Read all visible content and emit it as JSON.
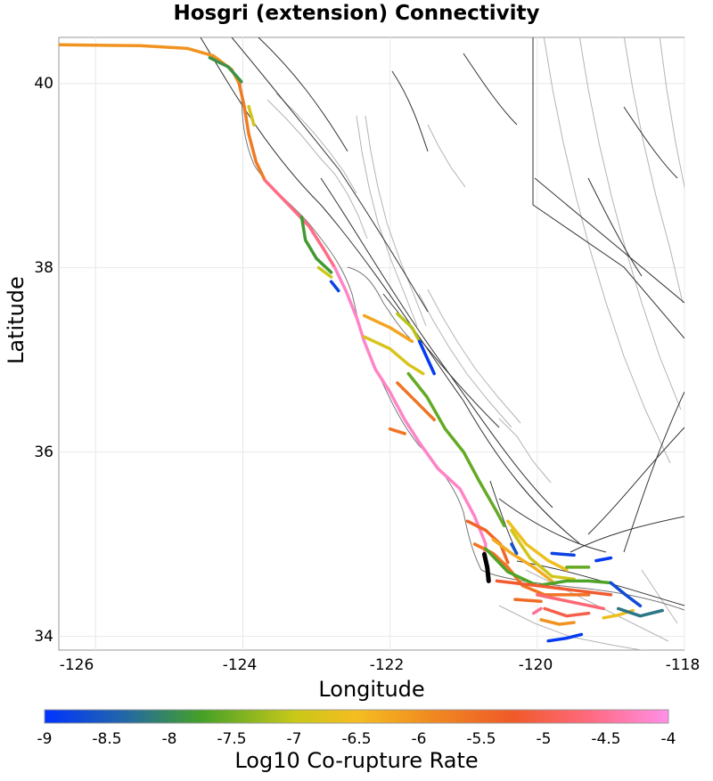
{
  "title": "Hosgri (extension) Connectivity",
  "axes": {
    "xlabel": "Longitude",
    "ylabel": "Latitude",
    "x_ticks": [
      "-126",
      "-124",
      "-122",
      "-120",
      "-118"
    ],
    "y_ticks": [
      "40",
      "38",
      "36",
      "34"
    ],
    "xlim": [
      -126.5,
      -118
    ],
    "ylim": [
      33.85,
      40.5
    ],
    "grid": true
  },
  "colorbar": {
    "title": "Log10 Co-rupture Rate",
    "ticks": [
      "-9",
      "-8.5",
      "-8",
      "-7.5",
      "-7",
      "-6.5",
      "-6",
      "-5.5",
      "-5",
      "-4.5",
      "-4"
    ],
    "range": [
      -9,
      -4
    ],
    "colors": [
      "#0033ff",
      "#2266aa",
      "#44a028",
      "#c8c818",
      "#f5bd20",
      "#f08820",
      "#f05a28",
      "#ff6a80",
      "#ff90e8"
    ]
  },
  "colors": {
    "fault_outline": "#333333",
    "fault_polygon": "#b4b4b4",
    "coast": "#777777",
    "source_fault": "#000000"
  },
  "map_data": {
    "source_fault": {
      "value": null,
      "lonlat": [
        [
          -120.72,
          34.89
        ],
        [
          -120.68,
          34.75
        ],
        [
          -120.66,
          34.6
        ]
      ]
    },
    "ruptures": [
      {
        "value": -6.0,
        "lonlat": [
          [
            -126.5,
            40.42
          ],
          [
            -125.4,
            40.41
          ],
          [
            -124.75,
            40.38
          ],
          [
            -124.4,
            40.3
          ],
          [
            -124.15,
            40.15
          ],
          [
            -124.05,
            40.0
          ]
        ]
      },
      {
        "value": -7.9,
        "lonlat": [
          [
            -124.45,
            40.28
          ],
          [
            -124.2,
            40.18
          ],
          [
            -124.02,
            40.02
          ]
        ]
      },
      {
        "value": -5.7,
        "lonlat": [
          [
            -124.05,
            40.0
          ],
          [
            -123.98,
            39.75
          ],
          [
            -123.92,
            39.45
          ],
          [
            -123.82,
            39.15
          ],
          [
            -123.7,
            38.95
          ]
        ]
      },
      {
        "value": -7.0,
        "lonlat": [
          [
            -123.92,
            39.75
          ],
          [
            -123.85,
            39.55
          ]
        ]
      },
      {
        "value": -4.6,
        "lonlat": [
          [
            -123.7,
            38.95
          ],
          [
            -123.4,
            38.7
          ],
          [
            -123.1,
            38.45
          ],
          [
            -122.9,
            38.2
          ],
          [
            -122.75,
            38.0
          ]
        ]
      },
      {
        "value": -4.2,
        "lonlat": [
          [
            -122.75,
            38.0
          ],
          [
            -122.6,
            37.75
          ],
          [
            -122.45,
            37.45
          ],
          [
            -122.35,
            37.2
          ],
          [
            -122.2,
            36.9
          ],
          [
            -122.0,
            36.65
          ],
          [
            -121.8,
            36.35
          ],
          [
            -121.6,
            36.1
          ],
          [
            -121.35,
            35.82
          ],
          [
            -121.05,
            35.6
          ],
          [
            -120.85,
            35.3
          ],
          [
            -120.7,
            35.0
          ],
          [
            -120.72,
            34.89
          ]
        ]
      },
      {
        "value": -7.8,
        "lonlat": [
          [
            -123.2,
            38.55
          ],
          [
            -123.15,
            38.3
          ],
          [
            -123.0,
            38.1
          ],
          [
            -122.8,
            37.95
          ]
        ]
      },
      {
        "value": -8.8,
        "lonlat": [
          [
            -122.8,
            37.85
          ],
          [
            -122.7,
            37.75
          ]
        ]
      },
      {
        "value": -7.1,
        "lonlat": [
          [
            -122.97,
            38.0
          ],
          [
            -122.8,
            37.9
          ]
        ]
      },
      {
        "value": -7.2,
        "lonlat": [
          [
            -121.9,
            37.5
          ],
          [
            -121.7,
            37.35
          ],
          [
            -121.6,
            37.2
          ]
        ]
      },
      {
        "value": -8.9,
        "lonlat": [
          [
            -121.6,
            37.2
          ],
          [
            -121.4,
            36.85
          ]
        ]
      },
      {
        "value": -6.2,
        "lonlat": [
          [
            -122.35,
            37.48
          ],
          [
            -122.0,
            37.35
          ],
          [
            -121.7,
            37.2
          ]
        ]
      },
      {
        "value": -6.9,
        "lonlat": [
          [
            -122.35,
            37.25
          ],
          [
            -122.0,
            37.12
          ],
          [
            -121.75,
            36.95
          ],
          [
            -121.55,
            36.85
          ]
        ]
      },
      {
        "value": -7.6,
        "lonlat": [
          [
            -121.75,
            36.85
          ],
          [
            -121.5,
            36.6
          ],
          [
            -121.25,
            36.25
          ],
          [
            -121.0,
            36.0
          ],
          [
            -120.8,
            35.7
          ],
          [
            -120.55,
            35.35
          ],
          [
            -120.45,
            35.2
          ]
        ]
      },
      {
        "value": -5.6,
        "lonlat": [
          [
            -121.9,
            36.75
          ],
          [
            -121.65,
            36.55
          ],
          [
            -121.4,
            36.35
          ]
        ]
      },
      {
        "value": -5.6,
        "lonlat": [
          [
            -122.0,
            36.25
          ],
          [
            -121.8,
            36.2
          ]
        ]
      },
      {
        "value": -5.4,
        "lonlat": [
          [
            -120.95,
            35.25
          ],
          [
            -120.7,
            35.15
          ],
          [
            -120.5,
            35.0
          ],
          [
            -120.4,
            34.8
          ]
        ]
      },
      {
        "value": -5.6,
        "lonlat": [
          [
            -120.85,
            35.0
          ],
          [
            -120.6,
            34.9
          ],
          [
            -120.4,
            34.75
          ],
          [
            -120.2,
            34.55
          ],
          [
            -119.9,
            34.45
          ],
          [
            -119.6,
            34.45
          ],
          [
            -119.3,
            34.45
          ]
        ]
      },
      {
        "value": -6.3,
        "lonlat": [
          [
            -120.6,
            35.05
          ],
          [
            -120.35,
            34.9
          ],
          [
            -120.05,
            34.75
          ],
          [
            -119.8,
            34.6
          ]
        ]
      },
      {
        "value": -6.6,
        "lonlat": [
          [
            -120.4,
            35.25
          ],
          [
            -120.15,
            35.0
          ],
          [
            -119.85,
            34.82
          ],
          [
            -119.6,
            34.72
          ]
        ]
      },
      {
        "value": -7.0,
        "lonlat": [
          [
            -120.35,
            35.15
          ],
          [
            -120.1,
            34.85
          ],
          [
            -119.8,
            34.65
          ],
          [
            -119.5,
            34.62
          ]
        ]
      },
      {
        "value": -7.7,
        "lonlat": [
          [
            -120.7,
            34.95
          ],
          [
            -120.4,
            34.7
          ],
          [
            -120.0,
            34.55
          ],
          [
            -119.6,
            34.6
          ],
          [
            -119.3,
            34.6
          ],
          [
            -119.0,
            34.58
          ]
        ]
      },
      {
        "value": -8.8,
        "lonlat": [
          [
            -119.8,
            34.9
          ],
          [
            -119.5,
            34.88
          ]
        ]
      },
      {
        "value": -8.6,
        "lonlat": [
          [
            -120.35,
            35.0
          ],
          [
            -120.28,
            34.9
          ]
        ]
      },
      {
        "value": -7.6,
        "lonlat": [
          [
            -119.6,
            34.75
          ],
          [
            -119.3,
            34.75
          ]
        ]
      },
      {
        "value": -8.9,
        "lonlat": [
          [
            -119.2,
            34.82
          ],
          [
            -119.0,
            34.85
          ]
        ]
      },
      {
        "value": -8.7,
        "lonlat": [
          [
            -119.0,
            34.58
          ],
          [
            -118.8,
            34.45
          ],
          [
            -118.6,
            34.33
          ]
        ]
      },
      {
        "value": -5.2,
        "lonlat": [
          [
            -120.55,
            34.6
          ],
          [
            -120.0,
            34.55
          ],
          [
            -119.5,
            34.5
          ],
          [
            -119.0,
            34.45
          ]
        ]
      },
      {
        "value": -4.7,
        "lonlat": [
          [
            -120.0,
            34.45
          ],
          [
            -119.7,
            34.4
          ],
          [
            -119.4,
            34.35
          ],
          [
            -119.1,
            34.3
          ]
        ]
      },
      {
        "value": -5.0,
        "lonlat": [
          [
            -119.9,
            34.3
          ],
          [
            -119.6,
            34.22
          ],
          [
            -119.3,
            34.25
          ]
        ]
      },
      {
        "value": -6.0,
        "lonlat": [
          [
            -119.95,
            34.18
          ],
          [
            -119.7,
            34.13
          ],
          [
            -119.5,
            34.15
          ]
        ]
      },
      {
        "value": -6.6,
        "lonlat": [
          [
            -119.1,
            34.2
          ],
          [
            -118.9,
            34.23
          ],
          [
            -118.7,
            34.28
          ]
        ]
      },
      {
        "value": -8.2,
        "lonlat": [
          [
            -118.9,
            34.3
          ],
          [
            -118.6,
            34.22
          ],
          [
            -118.3,
            34.28
          ]
        ]
      },
      {
        "value": -5.5,
        "lonlat": [
          [
            -120.3,
            34.4
          ],
          [
            -119.95,
            34.38
          ]
        ]
      },
      {
        "value": -8.9,
        "lonlat": [
          [
            -119.85,
            33.95
          ],
          [
            -119.6,
            33.98
          ],
          [
            -119.4,
            34.02
          ]
        ]
      },
      {
        "value": -4.5,
        "lonlat": [
          [
            -120.05,
            34.25
          ],
          [
            -119.95,
            34.3
          ]
        ]
      }
    ]
  }
}
